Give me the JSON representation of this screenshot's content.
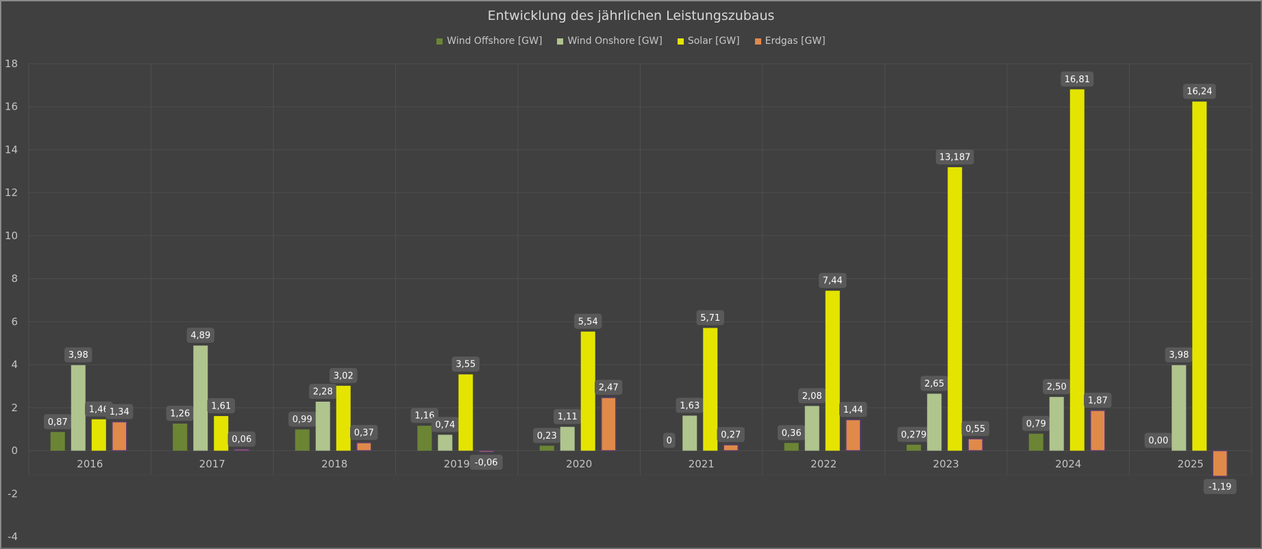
{
  "chart_data": {
    "type": "bar",
    "title": "Entwicklung des jährlichen Leistungszubaus",
    "xlabel": "",
    "ylabel": "",
    "ylim": [
      -4,
      18
    ],
    "yticks": [
      "18",
      "16",
      "14",
      "12",
      "10",
      "8",
      "6",
      "4",
      "2",
      "0",
      "-2",
      "-4"
    ],
    "ytick_values": [
      18,
      16,
      14,
      12,
      10,
      8,
      6,
      4,
      2,
      0,
      -2,
      -4
    ],
    "grid": true,
    "legend_position": "top-center",
    "categories": [
      "2016",
      "2017",
      "2018",
      "2019",
      "2020",
      "2021",
      "2022",
      "2023",
      "2024",
      "2025"
    ],
    "series": [
      {
        "name": "Wind Offshore [GW]",
        "color": "#6b8535",
        "values": [
          0.87,
          1.26,
          0.99,
          1.16,
          0.23,
          0,
          0.36,
          0.279,
          0.79,
          0.0
        ],
        "labels": [
          "0,87",
          "1,26",
          "0,99",
          "1,16",
          "0,23",
          "0",
          "0,36",
          "0,279",
          "0,79",
          "0,00"
        ]
      },
      {
        "name": "Wind Onshore [GW]",
        "color": "#b0c48e",
        "values": [
          3.98,
          4.89,
          2.28,
          0.74,
          1.11,
          1.63,
          2.08,
          2.65,
          2.5,
          3.98
        ],
        "labels": [
          "3,98",
          "4,89",
          "2,28",
          "0,74",
          "1,11",
          "1,63",
          "2,08",
          "2,65",
          "2,50",
          "3,98"
        ]
      },
      {
        "name": "Solar [GW]",
        "color": "#e4e400",
        "values": [
          1.46,
          1.61,
          3.02,
          3.55,
          5.54,
          5.71,
          7.44,
          13.187,
          16.81,
          16.24
        ],
        "labels": [
          "1,46",
          "1,61",
          "3,02",
          "3,55",
          "5,54",
          "5,71",
          "7,44",
          "13,187",
          "16,81",
          "16,24"
        ]
      },
      {
        "name": "Erdgas [GW]",
        "color": "#e08a4a",
        "values": [
          1.34,
          0.06,
          0.37,
          -0.06,
          2.47,
          0.27,
          1.44,
          0.55,
          1.87,
          -1.19
        ],
        "labels": [
          "1,34",
          "0,06",
          "0,37",
          "-0,06",
          "2,47",
          "0,27",
          "1,44",
          "0,55",
          "1,87",
          "-1,19"
        ]
      }
    ]
  }
}
